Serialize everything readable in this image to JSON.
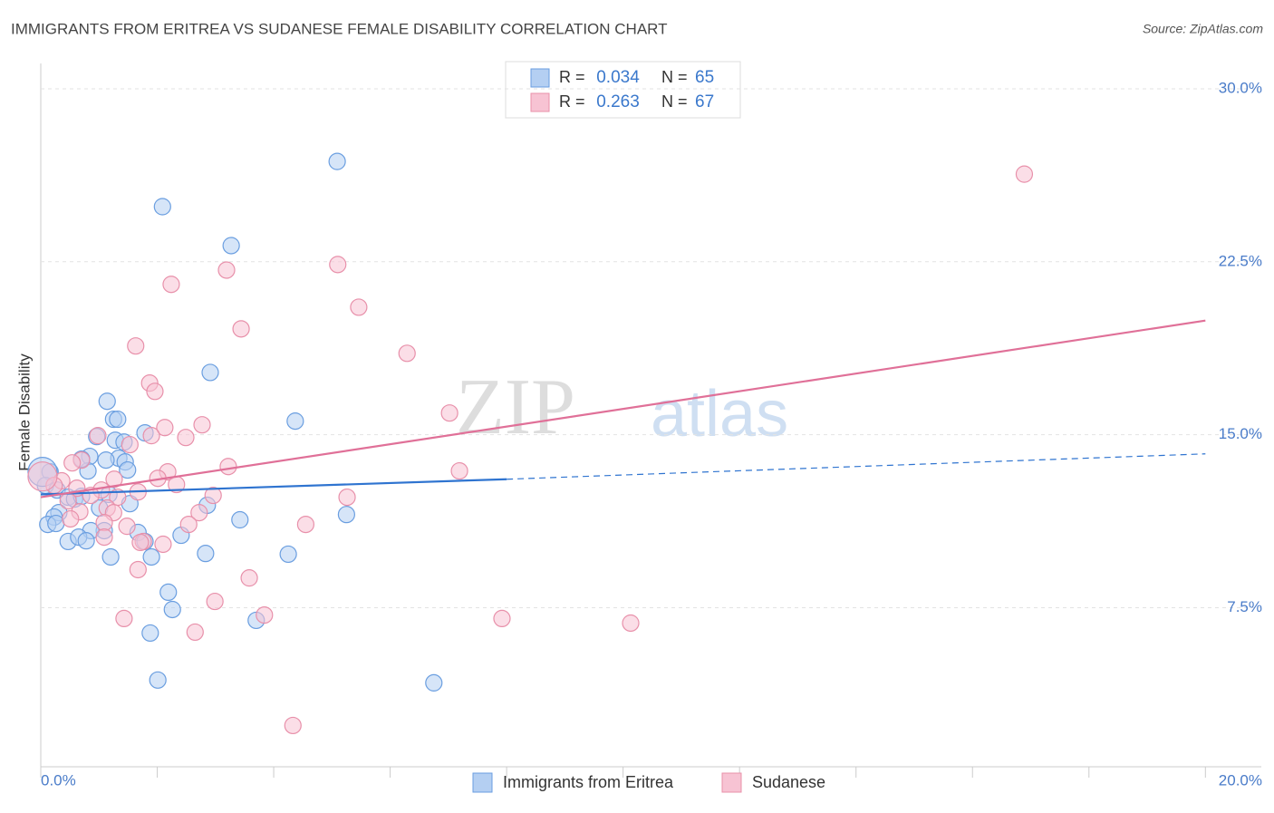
{
  "chart_data": {
    "type": "scatter",
    "title": "IMMIGRANTS FROM ERITREA VS SUDANESE FEMALE DISABILITY CORRELATION CHART",
    "source": "Source: ZipAtlas.com",
    "watermark": [
      "ZIP",
      "atlas"
    ],
    "ylabel": "Female Disability",
    "xlim": [
      0,
      20.96
    ],
    "ylim": [
      0.6,
      31.1
    ],
    "xticks": [
      {
        "value": 0,
        "label": "0.0%"
      },
      {
        "value": 20,
        "label": "20.0%"
      }
    ],
    "xminor_ticks": [
      2,
      4,
      6,
      8,
      10,
      12,
      14,
      16,
      18
    ],
    "yticks": [
      {
        "value": 7.5,
        "label": "7.5%"
      },
      {
        "value": 15,
        "label": "15.0%"
      },
      {
        "value": 22.5,
        "label": "22.5%"
      },
      {
        "value": 30,
        "label": "30.0%"
      }
    ],
    "grid": true,
    "r_label": "R =",
    "n_label": "N =",
    "series": [
      {
        "name": "Immigrants from Eritrea",
        "color": "#6a9ee0",
        "fill": "#b4cff2",
        "line_color": "#2f74d0",
        "r": 0.034,
        "n": 65,
        "trend": {
          "x": [
            0,
            8,
            20
          ],
          "y": [
            12.41,
            13.07,
            14.17
          ]
        },
        "x": [
          5.09,
          2.09,
          3.27,
          2.91,
          1.14,
          1.25,
          1.32,
          4.37,
          1.79,
          0.96,
          1.28,
          1.43,
          0.84,
          1.34,
          1.12,
          1.45,
          1.49,
          0.81,
          0.7,
          0.16,
          0.08,
          0.28,
          0.47,
          0.58,
          0.7,
          1.17,
          1.53,
          2.86,
          1.01,
          0.31,
          0.23,
          0.12,
          0.26,
          5.25,
          3.42,
          1.09,
          0.86,
          1.67,
          0.47,
          0.65,
          0.78,
          2.41,
          1.79,
          1.2,
          1.9,
          2.83,
          4.25,
          2.19,
          2.26,
          3.7,
          1.88,
          2.01,
          6.75,
          0.03
        ],
        "values": [
          26.85,
          24.89,
          23.2,
          17.7,
          16.45,
          15.67,
          15.67,
          15.59,
          15.08,
          14.92,
          14.76,
          14.68,
          14.06,
          13.98,
          13.9,
          13.82,
          13.47,
          13.43,
          13.94,
          13.39,
          12.8,
          12.6,
          12.29,
          12.21,
          12.33,
          12.41,
          12.01,
          11.94,
          11.82,
          11.62,
          11.43,
          11.11,
          11.15,
          11.54,
          11.31,
          10.84,
          10.84,
          10.76,
          10.37,
          10.56,
          10.4,
          10.64,
          10.37,
          9.7,
          9.7,
          9.85,
          9.82,
          8.17,
          7.42,
          6.95,
          6.4,
          4.36,
          4.24,
          13.39
        ],
        "sizes": [
          9,
          9,
          9,
          9,
          9,
          9,
          9,
          9,
          9,
          9,
          9,
          9,
          9,
          9,
          9,
          9,
          9,
          9,
          9,
          9,
          9,
          9,
          9,
          9,
          9,
          9,
          9,
          9,
          9,
          9,
          9,
          9,
          9,
          9,
          9,
          9,
          9,
          9,
          9,
          9,
          9,
          9,
          9,
          9,
          9,
          9,
          9,
          9,
          9,
          9,
          9,
          9,
          9,
          16
        ]
      },
      {
        "name": "Sudanese",
        "color": "#e890aa",
        "fill": "#f7c3d3",
        "line_color": "#e07098",
        "r": 0.263,
        "n": 67,
        "trend": {
          "x": [
            0,
            20,
            20
          ],
          "y": [
            12.29,
            19.95,
            19.95
          ]
        },
        "x": [
          16.89,
          5.1,
          3.19,
          2.24,
          5.46,
          3.44,
          1.63,
          6.29,
          1.87,
          1.96,
          7.02,
          2.13,
          2.77,
          0.98,
          1.9,
          2.49,
          1.53,
          0.7,
          0.54,
          3.22,
          7.19,
          2.18,
          2.01,
          1.26,
          0.36,
          0.23,
          2.33,
          0.62,
          1.04,
          1.67,
          2.96,
          0.86,
          5.26,
          1.32,
          0.47,
          1.14,
          0.67,
          2.72,
          1.25,
          1.09,
          0.51,
          2.54,
          4.55,
          1.48,
          1.09,
          1.76,
          1.71,
          2.1,
          1.67,
          3.58,
          2.99,
          3.84,
          1.43,
          7.92,
          10.13,
          2.65,
          4.33,
          0.03
        ],
        "values": [
          26.3,
          22.38,
          22.14,
          21.52,
          20.53,
          19.59,
          18.85,
          18.53,
          17.24,
          16.88,
          15.94,
          15.31,
          15.43,
          14.96,
          14.96,
          14.88,
          14.57,
          13.9,
          13.78,
          13.62,
          13.43,
          13.39,
          13.11,
          13.07,
          13.0,
          12.8,
          12.84,
          12.68,
          12.6,
          12.52,
          12.37,
          12.37,
          12.29,
          12.29,
          12.13,
          11.82,
          11.66,
          11.62,
          11.62,
          11.19,
          11.35,
          11.11,
          11.11,
          11.03,
          10.56,
          10.37,
          10.33,
          10.25,
          9.15,
          8.79,
          7.77,
          7.18,
          7.03,
          7.03,
          6.83,
          6.44,
          2.39,
          13.19
        ],
        "sizes": [
          9,
          9,
          9,
          9,
          9,
          9,
          9,
          9,
          9,
          9,
          9,
          9,
          9,
          9,
          9,
          9,
          9,
          9,
          9,
          9,
          9,
          9,
          9,
          9,
          9,
          9,
          9,
          9,
          9,
          9,
          9,
          9,
          9,
          9,
          9,
          9,
          9,
          9,
          9,
          9,
          9,
          9,
          9,
          9,
          9,
          9,
          9,
          9,
          9,
          9,
          9,
          9,
          9,
          9,
          9,
          9,
          9,
          16
        ]
      }
    ]
  }
}
